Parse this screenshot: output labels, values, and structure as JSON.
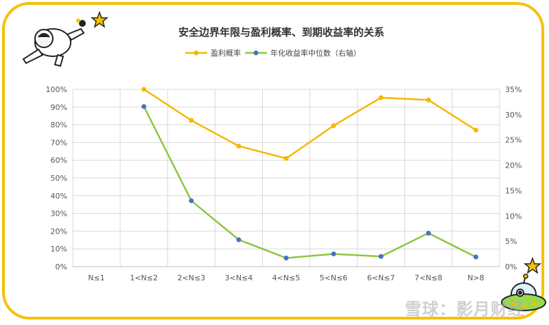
{
  "chart_data": {
    "type": "line",
    "title": "安全边界年限与盈利概率、到期收益率的关系",
    "categories": [
      "N≤1",
      "1<N≤2",
      "2<N≤3",
      "3<N≤4",
      "4<N≤5",
      "5<N≤6",
      "6<N≤7",
      "7<N≤8",
      "N>8"
    ],
    "series": [
      {
        "name": "盈利概率",
        "axis": "left",
        "color": "#f5b800",
        "values": [
          null,
          1.0,
          0.825,
          0.68,
          0.61,
          0.795,
          0.953,
          0.94,
          0.77
        ]
      },
      {
        "name": "年化收益率中位数（右轴）",
        "axis": "right",
        "color": "#8dc63f",
        "marker_color": "#4472c4",
        "values": [
          null,
          0.316,
          0.13,
          0.053,
          0.017,
          0.025,
          0.02,
          0.066,
          0.019
        ]
      }
    ],
    "y_left": {
      "min": 0,
      "max": 1.0,
      "ticks": [
        "0%",
        "10%",
        "20%",
        "30%",
        "40%",
        "50%",
        "60%",
        "70%",
        "80%",
        "90%",
        "100%"
      ]
    },
    "y_right": {
      "min": 0,
      "max": 0.35,
      "ticks": [
        "0%",
        "5%",
        "10%",
        "15%",
        "20%",
        "25%",
        "30%",
        "35%"
      ]
    },
    "grid": true,
    "legend_position": "top"
  },
  "watermark": "雪球：影月财经"
}
